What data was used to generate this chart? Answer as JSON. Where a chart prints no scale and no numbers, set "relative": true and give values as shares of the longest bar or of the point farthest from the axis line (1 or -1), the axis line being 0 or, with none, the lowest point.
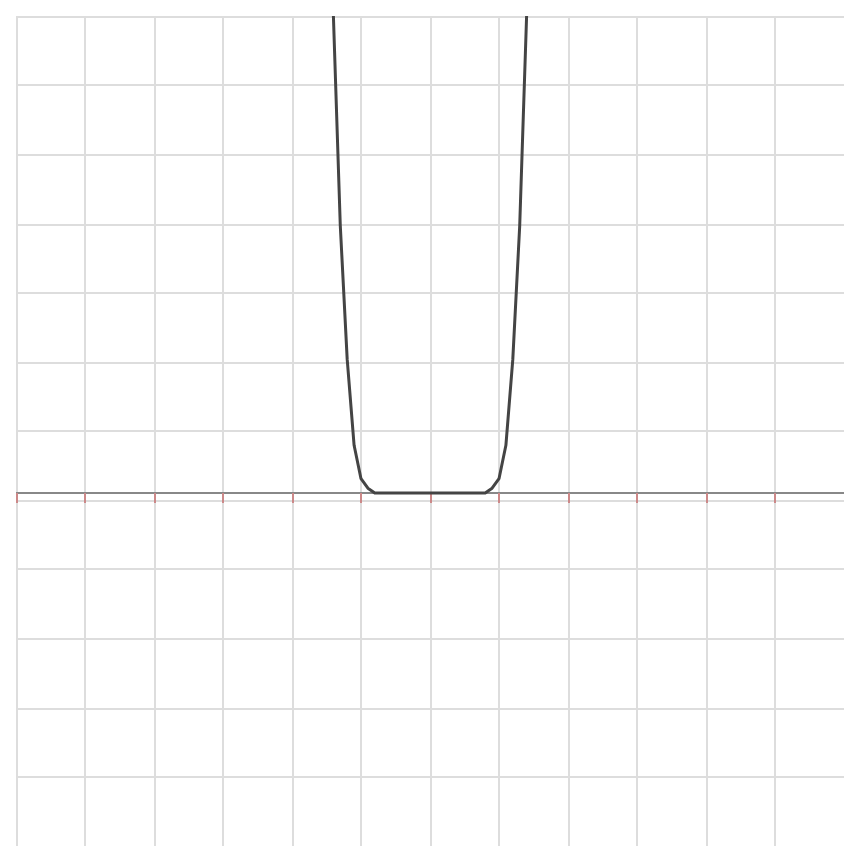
{
  "chart_data": {
    "type": "line",
    "relative": true,
    "tick_labels": false,
    "grid": true,
    "line_style": "solid",
    "categories": [
      null,
      null,
      null,
      null,
      null,
      null,
      null,
      null,
      null,
      null,
      null,
      null,
      null,
      null,
      null,
      null,
      null,
      null,
      null,
      null,
      null,
      null,
      null,
      null,
      null,
      null,
      null,
      null,
      null,
      null,
      null,
      null,
      null,
      null,
      null,
      null,
      null,
      null,
      null,
      null,
      null,
      null,
      null,
      null,
      null,
      null,
      null,
      null,
      null,
      null,
      null,
      null,
      null,
      null,
      null,
      null,
      null,
      null,
      null,
      null,
      null,
      null,
      null,
      null,
      null,
      null,
      null,
      null,
      null,
      null,
      null,
      null,
      null,
      null,
      null,
      null,
      null,
      null,
      null,
      null,
      null,
      null,
      null,
      null,
      null,
      null,
      null,
      null,
      null,
      null,
      null,
      null,
      null,
      null,
      null,
      null,
      null,
      null,
      null,
      null,
      null,
      null,
      null,
      null,
      null,
      null,
      null,
      null,
      null,
      null,
      null,
      null,
      null,
      null,
      null,
      null,
      null,
      null,
      null,
      null,
      null
    ],
    "series": [
      {
        "color": "#444444",
        "values": [
          null,
          null,
          null,
          null,
          null,
          null,
          null,
          null,
          null,
          null,
          null,
          null,
          null,
          null,
          null,
          null,
          null,
          null,
          null,
          null,
          null,
          null,
          null,
          null,
          null,
          null,
          null,
          null,
          null,
          null,
          null,
          null,
          null,
          null,
          null,
          null,
          null,
          null,
          null,
          null,
          null,
          null,
          null,
          null,
          null,
          null,
          1,
          0.56,
          0.28,
          0.1,
          0.03,
          0.01,
          0,
          0,
          0,
          0,
          0,
          0,
          0,
          0,
          0,
          0,
          0,
          0,
          0,
          0,
          0,
          0,
          0,
          0.01,
          0.03,
          0.1,
          0.28,
          0.56,
          1,
          null,
          null,
          null,
          null,
          null,
          null,
          null,
          null,
          null,
          null,
          null,
          null,
          null,
          null,
          null,
          null,
          null,
          null,
          null,
          null,
          null,
          null,
          null,
          null,
          null,
          null,
          null,
          null,
          null,
          null,
          null,
          null,
          null,
          null,
          null,
          null,
          null,
          null,
          null,
          null,
          null,
          null,
          null,
          null,
          null,
          null
        ]
      }
    ]
  }
}
